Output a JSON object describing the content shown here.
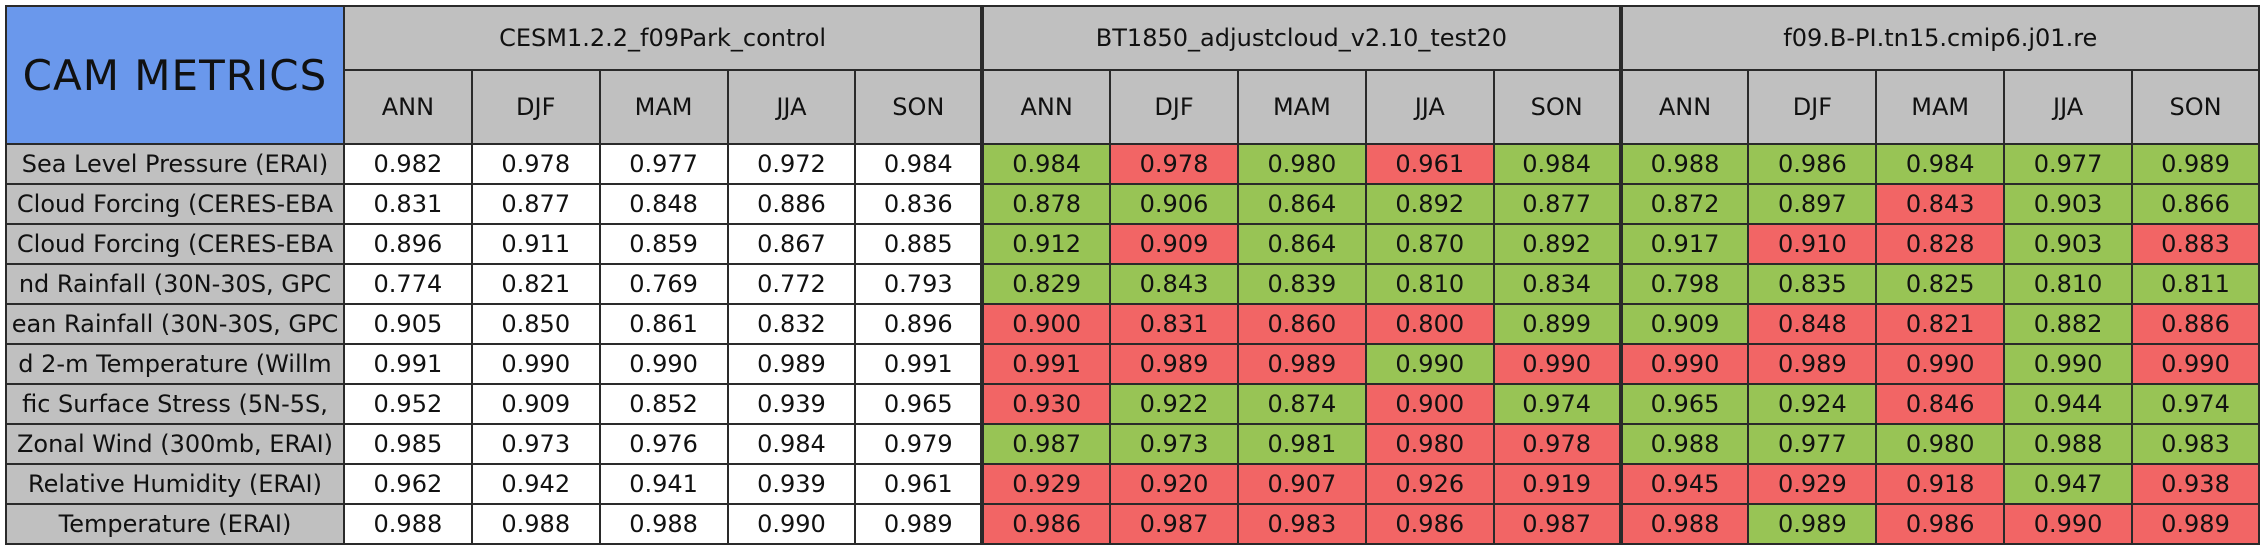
{
  "chart_data": {
    "type": "table",
    "title": "CAM METRICS",
    "cases": [
      "CESM1.2.2_f09Park_control",
      "BT1850_adjustcloud_v2.10_test20",
      "f09.B-PI.tn15.cmip6.j01.re"
    ],
    "seasons": [
      "ANN",
      "DJF",
      "MAM",
      "JJA",
      "SON"
    ],
    "rows": [
      {
        "metric": "Sea Level Pressure (ERAI)",
        "values": [
          [
            0.982,
            0.978,
            0.977,
            0.972,
            0.984
          ],
          [
            0.984,
            0.978,
            0.98,
            0.961,
            0.984
          ],
          [
            0.988,
            0.986,
            0.984,
            0.977,
            0.989
          ]
        ],
        "display": [
          [
            "0.982",
            "0.978",
            "0.977",
            "0.972",
            "0.984"
          ],
          [
            "0.984",
            "0.978",
            "0.980",
            "0.961",
            "0.984"
          ],
          [
            "0.988",
            "0.986",
            "0.984",
            "0.977",
            "0.989"
          ]
        ],
        "status": [
          [
            "none",
            "none",
            "none",
            "none",
            "none"
          ],
          [
            "better",
            "worse",
            "better",
            "worse",
            "better"
          ],
          [
            "better",
            "better",
            "better",
            "better",
            "better"
          ]
        ]
      },
      {
        "metric": "Cloud Forcing (CERES-EBA",
        "values": [
          [
            0.831,
            0.877,
            0.848,
            0.886,
            0.836
          ],
          [
            0.878,
            0.906,
            0.864,
            0.892,
            0.877
          ],
          [
            0.872,
            0.897,
            0.843,
            0.903,
            0.866
          ]
        ],
        "display": [
          [
            "0.831",
            "0.877",
            "0.848",
            "0.886",
            "0.836"
          ],
          [
            "0.878",
            "0.906",
            "0.864",
            "0.892",
            "0.877"
          ],
          [
            "0.872",
            "0.897",
            "0.843",
            "0.903",
            "0.866"
          ]
        ],
        "status": [
          [
            "none",
            "none",
            "none",
            "none",
            "none"
          ],
          [
            "better",
            "better",
            "better",
            "better",
            "better"
          ],
          [
            "better",
            "better",
            "worse",
            "better",
            "better"
          ]
        ]
      },
      {
        "metric": "Cloud Forcing (CERES-EBA",
        "values": [
          [
            0.896,
            0.911,
            0.859,
            0.867,
            0.885
          ],
          [
            0.912,
            0.909,
            0.864,
            0.87,
            0.892
          ],
          [
            0.917,
            0.91,
            0.828,
            0.903,
            0.883
          ]
        ],
        "display": [
          [
            "0.896",
            "0.911",
            "0.859",
            "0.867",
            "0.885"
          ],
          [
            "0.912",
            "0.909",
            "0.864",
            "0.870",
            "0.892"
          ],
          [
            "0.917",
            "0.910",
            "0.828",
            "0.903",
            "0.883"
          ]
        ],
        "status": [
          [
            "none",
            "none",
            "none",
            "none",
            "none"
          ],
          [
            "better",
            "worse",
            "better",
            "better",
            "better"
          ],
          [
            "better",
            "worse",
            "worse",
            "better",
            "worse"
          ]
        ]
      },
      {
        "metric": "nd Rainfall (30N-30S, GPC",
        "values": [
          [
            0.774,
            0.821,
            0.769,
            0.772,
            0.793
          ],
          [
            0.829,
            0.843,
            0.839,
            0.81,
            0.834
          ],
          [
            0.798,
            0.835,
            0.825,
            0.81,
            0.811
          ]
        ],
        "display": [
          [
            "0.774",
            "0.821",
            "0.769",
            "0.772",
            "0.793"
          ],
          [
            "0.829",
            "0.843",
            "0.839",
            "0.810",
            "0.834"
          ],
          [
            "0.798",
            "0.835",
            "0.825",
            "0.810",
            "0.811"
          ]
        ],
        "status": [
          [
            "none",
            "none",
            "none",
            "none",
            "none"
          ],
          [
            "better",
            "better",
            "better",
            "better",
            "better"
          ],
          [
            "better",
            "better",
            "better",
            "better",
            "better"
          ]
        ]
      },
      {
        "metric": "ean Rainfall (30N-30S, GPC",
        "values": [
          [
            0.905,
            0.85,
            0.861,
            0.832,
            0.896
          ],
          [
            0.9,
            0.831,
            0.86,
            0.8,
            0.899
          ],
          [
            0.909,
            0.848,
            0.821,
            0.882,
            0.886
          ]
        ],
        "display": [
          [
            "0.905",
            "0.850",
            "0.861",
            "0.832",
            "0.896"
          ],
          [
            "0.900",
            "0.831",
            "0.860",
            "0.800",
            "0.899"
          ],
          [
            "0.909",
            "0.848",
            "0.821",
            "0.882",
            "0.886"
          ]
        ],
        "status": [
          [
            "none",
            "none",
            "none",
            "none",
            "none"
          ],
          [
            "worse",
            "worse",
            "worse",
            "worse",
            "better"
          ],
          [
            "better",
            "worse",
            "worse",
            "better",
            "worse"
          ]
        ]
      },
      {
        "metric": "d 2-m Temperature (Willm",
        "values": [
          [
            0.991,
            0.99,
            0.99,
            0.989,
            0.991
          ],
          [
            0.991,
            0.989,
            0.989,
            0.99,
            0.99
          ],
          [
            0.99,
            0.989,
            0.99,
            0.99,
            0.99
          ]
        ],
        "display": [
          [
            "0.991",
            "0.990",
            "0.990",
            "0.989",
            "0.991"
          ],
          [
            "0.991",
            "0.989",
            "0.989",
            "0.990",
            "0.990"
          ],
          [
            "0.990",
            "0.989",
            "0.990",
            "0.990",
            "0.990"
          ]
        ],
        "status": [
          [
            "none",
            "none",
            "none",
            "none",
            "none"
          ],
          [
            "worse",
            "worse",
            "worse",
            "better",
            "worse"
          ],
          [
            "worse",
            "worse",
            "worse",
            "better",
            "worse"
          ]
        ]
      },
      {
        "metric": "fic Surface Stress (5N-5S,",
        "values": [
          [
            0.952,
            0.909,
            0.852,
            0.939,
            0.965
          ],
          [
            0.93,
            0.922,
            0.874,
            0.9,
            0.974
          ],
          [
            0.965,
            0.924,
            0.846,
            0.944,
            0.974
          ]
        ],
        "display": [
          [
            "0.952",
            "0.909",
            "0.852",
            "0.939",
            "0.965"
          ],
          [
            "0.930",
            "0.922",
            "0.874",
            "0.900",
            "0.974"
          ],
          [
            "0.965",
            "0.924",
            "0.846",
            "0.944",
            "0.974"
          ]
        ],
        "status": [
          [
            "none",
            "none",
            "none",
            "none",
            "none"
          ],
          [
            "worse",
            "better",
            "better",
            "worse",
            "better"
          ],
          [
            "better",
            "better",
            "worse",
            "better",
            "better"
          ]
        ]
      },
      {
        "metric": "Zonal Wind (300mb, ERAI)",
        "values": [
          [
            0.985,
            0.973,
            0.976,
            0.984,
            0.979
          ],
          [
            0.987,
            0.973,
            0.981,
            0.98,
            0.978
          ],
          [
            0.988,
            0.977,
            0.98,
            0.988,
            0.983
          ]
        ],
        "display": [
          [
            "0.985",
            "0.973",
            "0.976",
            "0.984",
            "0.979"
          ],
          [
            "0.987",
            "0.973",
            "0.981",
            "0.980",
            "0.978"
          ],
          [
            "0.988",
            "0.977",
            "0.980",
            "0.988",
            "0.983"
          ]
        ],
        "status": [
          [
            "none",
            "none",
            "none",
            "none",
            "none"
          ],
          [
            "better",
            "better",
            "better",
            "worse",
            "worse"
          ],
          [
            "better",
            "better",
            "better",
            "better",
            "better"
          ]
        ]
      },
      {
        "metric": "Relative Humidity (ERAI)",
        "values": [
          [
            0.962,
            0.942,
            0.941,
            0.939,
            0.961
          ],
          [
            0.929,
            0.92,
            0.907,
            0.926,
            0.919
          ],
          [
            0.945,
            0.929,
            0.918,
            0.947,
            0.938
          ]
        ],
        "display": [
          [
            "0.962",
            "0.942",
            "0.941",
            "0.939",
            "0.961"
          ],
          [
            "0.929",
            "0.920",
            "0.907",
            "0.926",
            "0.919"
          ],
          [
            "0.945",
            "0.929",
            "0.918",
            "0.947",
            "0.938"
          ]
        ],
        "status": [
          [
            "none",
            "none",
            "none",
            "none",
            "none"
          ],
          [
            "worse",
            "worse",
            "worse",
            "worse",
            "worse"
          ],
          [
            "worse",
            "worse",
            "worse",
            "better",
            "worse"
          ]
        ]
      },
      {
        "metric": "Temperature (ERAI)",
        "values": [
          [
            0.988,
            0.988,
            0.988,
            0.99,
            0.989
          ],
          [
            0.986,
            0.987,
            0.983,
            0.986,
            0.987
          ],
          [
            0.988,
            0.989,
            0.986,
            0.99,
            0.989
          ]
        ],
        "display": [
          [
            "0.988",
            "0.988",
            "0.988",
            "0.990",
            "0.989"
          ],
          [
            "0.986",
            "0.987",
            "0.983",
            "0.986",
            "0.987"
          ],
          [
            "0.988",
            "0.989",
            "0.986",
            "0.990",
            "0.989"
          ]
        ],
        "status": [
          [
            "none",
            "none",
            "none",
            "none",
            "none"
          ],
          [
            "worse",
            "worse",
            "worse",
            "worse",
            "worse"
          ],
          [
            "worse",
            "better",
            "worse",
            "worse",
            "worse"
          ]
        ]
      }
    ]
  },
  "colors": {
    "title_background": "#6a98ec",
    "header_background": "#c0c0c0",
    "better": "#98c455",
    "worse": "#f26565",
    "neutral": "#ffffff"
  }
}
